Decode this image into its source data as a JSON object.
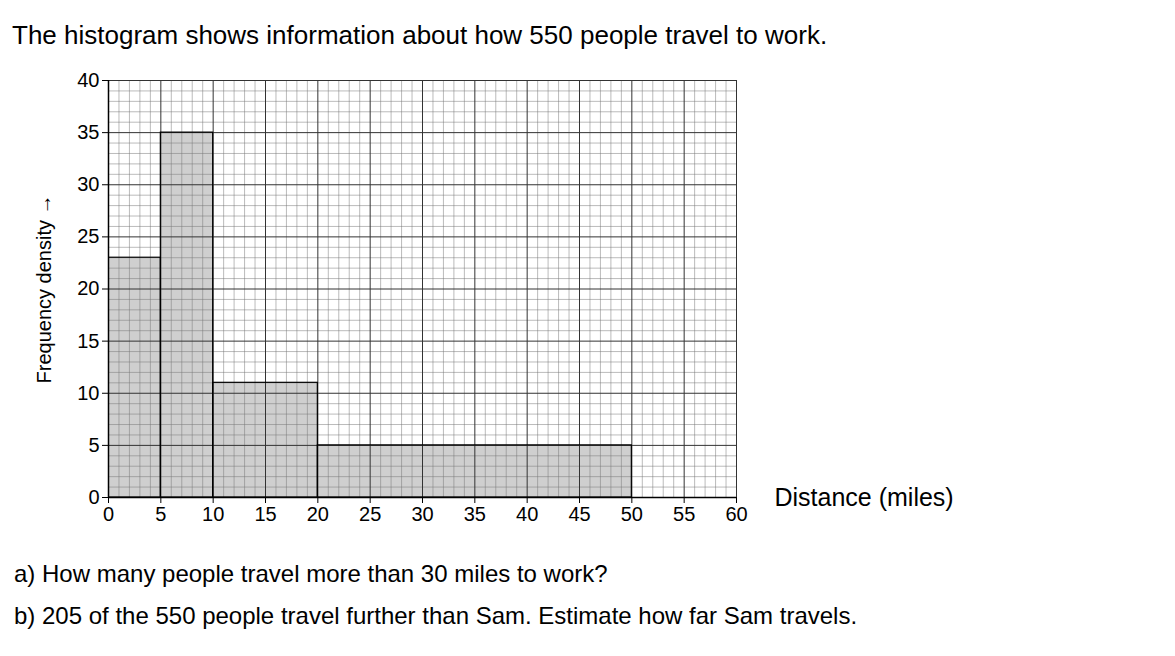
{
  "chart_data": {
    "type": "histogram",
    "title": "The histogram shows information about how 550 people travel to work.",
    "annotations": [
      "a) How many people travel more than 30 miles to work?",
      "b) 205 of the 550 people travel further than Sam. Estimate how far Sam travels."
    ],
    "bins": [
      0,
      5,
      10,
      20,
      50
    ],
    "values": [
      23,
      35,
      11,
      5
    ],
    "color": "#cfcfcf",
    "xlabel": "Distance (miles)",
    "ylabel": "Frequency density",
    "xlim": [
      0,
      60
    ],
    "xticks": [
      0,
      5,
      10,
      15,
      20,
      25,
      30,
      35,
      40,
      45,
      50,
      55,
      60
    ],
    "ylim": [
      0,
      40
    ],
    "yticks": [
      0,
      5,
      10,
      15,
      20,
      25,
      30,
      35,
      40
    ],
    "grid": true
  }
}
